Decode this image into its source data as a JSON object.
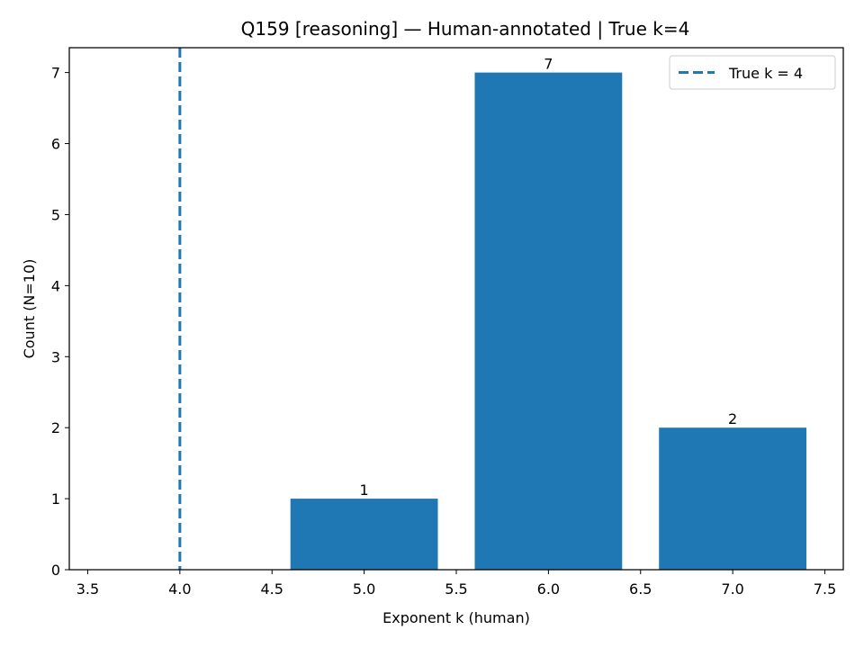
{
  "chart_data": {
    "type": "bar",
    "title": "Q159 [reasoning] — Human-annotated | True k=4",
    "xlabel": "Exponent k (human)",
    "ylabel": "Count (N=10)",
    "xlim": [
      3.4,
      7.6
    ],
    "ylim": [
      0,
      7.35
    ],
    "xticks": [
      3.5,
      4.0,
      4.5,
      5.0,
      5.5,
      6.0,
      6.5,
      7.0,
      7.5
    ],
    "xtick_labels": [
      "3.5",
      "4.0",
      "4.5",
      "5.0",
      "5.5",
      "6.0",
      "6.5",
      "7.0",
      "7.5"
    ],
    "yticks": [
      0,
      1,
      2,
      3,
      4,
      5,
      6,
      7
    ],
    "ytick_labels": [
      "0",
      "1",
      "2",
      "3",
      "4",
      "5",
      "6",
      "7"
    ],
    "x": [
      5,
      6,
      7
    ],
    "values": [
      1,
      7,
      2
    ],
    "data_labels": [
      "1",
      "7",
      "2"
    ],
    "bar_width": 0.8,
    "bar_color": "#1f77b4",
    "reference_line": {
      "x": 4,
      "style": "dashed",
      "color": "#1f77b4",
      "label": "True k = 4"
    },
    "legend": {
      "position": "top-right",
      "entries": [
        "True k = 4"
      ]
    },
    "grid": false
  }
}
